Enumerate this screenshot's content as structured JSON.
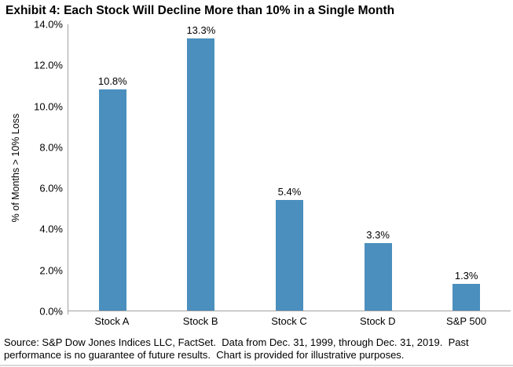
{
  "header": {
    "title": "Exhibit 4: Each Stock Will Decline More than 10% in a Single Month"
  },
  "chart_data": {
    "type": "bar",
    "title": "Exhibit 4: Each Stock Will Decline More than 10% in a Single Month",
    "categories": [
      "Stock A",
      "Stock B",
      "Stock C",
      "Stock D",
      "S&P 500"
    ],
    "values": [
      10.8,
      13.3,
      5.4,
      3.3,
      1.3
    ],
    "value_labels": [
      "10.8%",
      "13.3%",
      "5.4%",
      "3.3%",
      "1.3%"
    ],
    "xlabel": "",
    "ylabel": "% of Months > 10% Loss",
    "ylim": [
      0,
      14
    ],
    "y_ticks": [
      {
        "value": 0,
        "label": "0.0%"
      },
      {
        "value": 2,
        "label": "2.0%"
      },
      {
        "value": 4,
        "label": "4.0%"
      },
      {
        "value": 6,
        "label": "6.0%"
      },
      {
        "value": 8,
        "label": "8.0%"
      },
      {
        "value": 10,
        "label": "10.0%"
      },
      {
        "value": 12,
        "label": "12.0%"
      },
      {
        "value": 14,
        "label": "14.0%"
      }
    ],
    "grid": false,
    "legend_position": "none",
    "bar_color": "#4a8fbd",
    "axis_color": "#a0a0a0"
  },
  "footer": {
    "source_lines": [
      "Source: S&P Dow Jones Indices LLC, FactSet.  Data from Dec. 31, 1999, through Dec. 31, 2019.  Past",
      "performance is no guarantee of future results.  Chart is provided for illustrative purposes."
    ]
  }
}
